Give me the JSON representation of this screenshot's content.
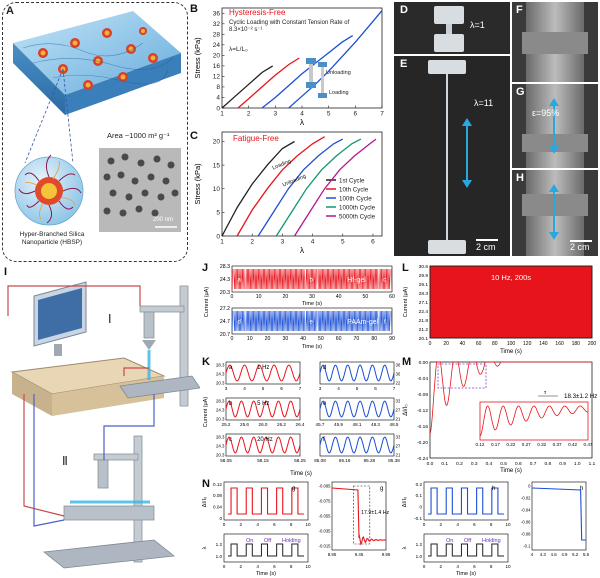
{
  "panels": {
    "A": {
      "letter": "A",
      "area_label": "Area ~1000 m² g⁻¹",
      "scale_bar": "200 nm",
      "particle_caption": "Hyper-Branched Silica Nanoparticle (HBSP)"
    },
    "B": {
      "letter": "B",
      "title": "Hysteresis-Free",
      "subtitle": "Cyclic Loading with Constant Tension Rate of 8.3×10⁻² s⁻¹",
      "lambda_def": "λ=L/L₀",
      "unloading": "Unloading",
      "loading": "Loading",
      "xlabel": "λ",
      "ylabel": "Stress (kPa)"
    },
    "C": {
      "letter": "C",
      "title": "Fatigue-Free",
      "loading": "Loading",
      "unloading": "Unloading",
      "xlabel": "λ",
      "ylabel": "Stress (kPa)"
    },
    "D": {
      "letter": "D",
      "label": "λ=1"
    },
    "E": {
      "letter": "E",
      "label": "λ=11",
      "scale": "2 cm"
    },
    "F": {
      "letter": "F"
    },
    "G": {
      "letter": "G",
      "label": "ε=95%"
    },
    "H": {
      "letter": "H",
      "scale": "2 cm"
    },
    "I": {
      "letter": "I",
      "roman1": "Ⅰ",
      "roman2": "Ⅱ"
    },
    "J": {
      "letter": "J",
      "ylabel": "Current (μA)",
      "xlabel": "Time (s)",
      "top_label": "Hf-gel",
      "bottom_label": "PAAm-gel",
      "boxes_top": [
        "a",
        "b",
        "c"
      ],
      "boxes_bottom": [
        "d",
        "e",
        "f"
      ]
    },
    "K": {
      "letter": "K",
      "xlabel": "Time (s)",
      "ylabel": "Current (μA)",
      "sub": [
        {
          "id": "a",
          "freq": "1 Hz"
        },
        {
          "id": "b",
          "freq": "5 Hz"
        },
        {
          "id": "c",
          "freq": "20 Hz"
        },
        {
          "id": "d",
          "freq": ""
        },
        {
          "id": "e",
          "freq": ""
        },
        {
          "id": "f",
          "freq": ""
        }
      ]
    },
    "L": {
      "letter": "L",
      "label": "10 Hz, 200s",
      "xlabel": "Time (s)",
      "ylabel": "Current (μA)"
    },
    "M": {
      "letter": "M",
      "label": "18.3±1.2 Hz",
      "tau": "τ",
      "xlabel": "Time (s)",
      "ylabel": "ΔI/I₀"
    },
    "N": {
      "letter": "N",
      "g_label": "g",
      "h_label": "h",
      "freq_label": "17.9±1.4 Hz",
      "on": "On",
      "off": "Off",
      "holding": "Holding",
      "xlabel": "Time (s)",
      "ylabel_top": "ΔI/I₀",
      "ylabel_bottom": "λ"
    }
  },
  "chart_data": [
    {
      "id": "B",
      "type": "line",
      "title": "Hysteresis-Free",
      "xlabel": "λ",
      "ylabel": "Stress (kPa)",
      "xlim": [
        1,
        7
      ],
      "ylim": [
        0,
        38
      ],
      "xticks": [
        1,
        2,
        3,
        4,
        5,
        6,
        7
      ],
      "yticks": [
        0,
        4,
        8,
        12,
        16,
        20,
        24,
        28,
        32,
        36
      ],
      "series": [
        {
          "name": "cycle1",
          "color": "#222222",
          "x": [
            1,
            1.5,
            2,
            2.5,
            2.9
          ],
          "y": [
            0,
            4.5,
            9,
            13.5,
            16
          ]
        },
        {
          "name": "cycle2",
          "color": "#e8141c",
          "x": [
            1.6,
            2,
            2.5,
            3,
            3.5,
            3.9
          ],
          "y": [
            0,
            3.5,
            8,
            12.5,
            16.5,
            19
          ]
        },
        {
          "name": "cycle3",
          "color": "#1b4fd6",
          "x": [
            2.5,
            3,
            3.5,
            4,
            4.5,
            5,
            5.5,
            5.9
          ],
          "y": [
            0,
            4,
            8.5,
            13,
            17,
            21,
            25,
            27.5
          ]
        },
        {
          "name": "cycle4",
          "color": "#1b4fd6",
          "x": [
            3.5,
            4,
            4.5,
            5,
            5.5,
            6,
            6.5,
            7
          ],
          "y": [
            0,
            4.5,
            9,
            14,
            19.5,
            25,
            31,
            37
          ]
        }
      ]
    },
    {
      "id": "C",
      "type": "line",
      "title": "Fatigue-Free",
      "xlabel": "λ",
      "ylabel": "Stress (kPa)",
      "xlim": [
        1,
        6.3
      ],
      "ylim": [
        0,
        22
      ],
      "xticks": [
        1,
        2,
        3,
        4,
        5,
        6
      ],
      "yticks": [
        0,
        5,
        10,
        15,
        20
      ],
      "legend": [
        "1st Cycle",
        "10th Cycle",
        "100th Cycle",
        "1000th Cycle",
        "5000th Cycle"
      ],
      "series": [
        {
          "name": "1st Cycle",
          "color": "#222222",
          "x": [
            1,
            1.5,
            2,
            2.5,
            3,
            3.4
          ],
          "y": [
            0,
            6,
            11,
            15,
            18.5,
            20
          ]
        },
        {
          "name": "10th Cycle",
          "color": "#e8141c",
          "x": [
            1.5,
            2,
            2.5,
            3,
            3.5,
            4,
            4.4
          ],
          "y": [
            0,
            5.5,
            10,
            14,
            17,
            19.5,
            21
          ]
        },
        {
          "name": "100th Cycle",
          "color": "#1b4fd6",
          "x": [
            2.2,
            2.7,
            3.2,
            3.7,
            4.2,
            4.7,
            5
          ],
          "y": [
            0,
            5,
            10,
            14,
            17,
            19.5,
            20.5
          ]
        },
        {
          "name": "1000th Cycle",
          "color": "#0d9a6a",
          "x": [
            2.8,
            3.3,
            3.8,
            4.3,
            4.8,
            5.3,
            5.6
          ],
          "y": [
            0,
            5,
            10,
            14,
            17,
            19.5,
            20.5
          ]
        },
        {
          "name": "5000th Cycle",
          "color": "#b2188f",
          "x": [
            3.4,
            3.9,
            4.4,
            4.9,
            5.4,
            5.9,
            6.1
          ],
          "y": [
            0,
            5,
            10,
            14,
            17,
            19.5,
            20.5
          ]
        }
      ]
    },
    {
      "id": "J",
      "type": "line",
      "xlabel": "Time (s)",
      "ylabel": "Current (μA)",
      "top": {
        "name": "Hf-gel",
        "color": "#e8141c",
        "xlim": [
          0,
          60
        ],
        "xticks": [
          0,
          10,
          20,
          30,
          40,
          50,
          60
        ],
        "yticks": [
          20.3,
          24.3,
          28.3
        ]
      },
      "bottom": {
        "name": "PAAm-gel",
        "color": "#1b4fd6",
        "xlim": [
          0,
          90
        ],
        "xticks": [
          0,
          10,
          20,
          30,
          40,
          50,
          60,
          70,
          80,
          90
        ],
        "yticks": [
          20.7,
          24.7,
          27.2
        ]
      }
    },
    {
      "id": "K",
      "type": "line",
      "subplots": [
        {
          "id": "a",
          "freq": "1 Hz",
          "color": "#e8141c",
          "xticks": [
            "3",
            "4",
            "5",
            "6",
            "7"
          ],
          "yticks": [
            "28.3",
            "24.3",
            "20.3"
          ],
          "cycles": 5
        },
        {
          "id": "b",
          "freq": "5 Hz",
          "color": "#e8141c",
          "xticks": [
            "25.2",
            "25.6",
            "26.0",
            "26.2",
            "26.4"
          ],
          "yticks": [
            "28.3",
            "24.3",
            "20.3"
          ],
          "cycles": 6
        },
        {
          "id": "c",
          "freq": "20 Hz",
          "color": "#e8141c",
          "xticks": [
            "58.05",
            "58.15",
            "58.25"
          ],
          "yticks": [
            "28.3",
            "24.3",
            "20.3"
          ],
          "cycles": 6
        },
        {
          "id": "d",
          "freq": "",
          "color": "#1b4fd6",
          "xticks": [
            "3",
            "4",
            "5",
            "6",
            "7"
          ],
          "yticks": [
            "38.3",
            "36.3",
            "22.3"
          ],
          "cycles": 6
        },
        {
          "id": "e",
          "freq": "",
          "color": "#1b4fd6",
          "xticks": [
            "45.7",
            "45.9",
            "48.1",
            "48.3",
            "48.5"
          ],
          "yticks": [
            "33.8",
            "27.8",
            "21.8"
          ],
          "cycles": 6
        },
        {
          "id": "f",
          "freq": "",
          "color": "#1b4fd6",
          "xticks": [
            "85.08",
            "85.18",
            "85.28",
            "85.38"
          ],
          "yticks": [
            "33.2",
            "27.2",
            "21.2"
          ],
          "cycles": 6
        }
      ],
      "xlabel": "Time (s)"
    },
    {
      "id": "L",
      "type": "line",
      "label": "10 Hz, 200s",
      "xlabel": "Time (s)",
      "ylabel": "Current (μA)",
      "xticks": [
        0,
        20,
        40,
        60,
        80,
        100,
        120,
        140,
        160,
        180,
        200
      ],
      "yticks": [
        20.1,
        21.2,
        21.8,
        22.4,
        27.1,
        28.3,
        29.1,
        29.9,
        30.6
      ],
      "color": "#e8141c"
    },
    {
      "id": "M",
      "type": "line",
      "xlabel": "Time (s)",
      "ylabel": "ΔI/I₀",
      "xticks": [
        0.0,
        0.1,
        0.2,
        0.3,
        0.4,
        0.5,
        0.6,
        0.7,
        0.8,
        0.9,
        1.0,
        1.1
      ],
      "yticks": [
        0.0,
        -0.04,
        -0.08,
        -0.12,
        -0.16,
        -0.2,
        -0.24
      ],
      "inset_xticks": [
        0.12,
        0.17,
        0.22,
        0.27,
        0.32,
        0.37,
        0.42,
        0.47
      ],
      "color": "#e8141c",
      "annotation": "18.3±1.2 Hz"
    },
    {
      "id": "N",
      "type": "line",
      "left": {
        "color": "#e8141c",
        "yticks": [
          0.12,
          0.08,
          0.04,
          0
        ],
        "xticks": [
          0,
          2,
          4,
          6,
          8,
          10
        ],
        "inset_xticks": [
          8.95,
          9.45,
          9.95
        ],
        "inset_yticks": [
          -0.095,
          -0.075,
          -0.055,
          -0.035,
          -0.015
        ],
        "annotation": "17.9±1.4 Hz"
      },
      "right": {
        "color": "#1b4fd6",
        "yticks": [
          0.2,
          0.1,
          0.0,
          -0.1
        ],
        "xticks": [
          0,
          2,
          4,
          6,
          8,
          10
        ],
        "inset_xticks": [
          4.0,
          4.3,
          4.6,
          4.9,
          5.2,
          5.5
        ],
        "inset_yticks": [
          0.0,
          -0.02,
          -0.04,
          -0.06,
          -0.08,
          -0.1
        ]
      },
      "lambda_yticks": [
        1.2,
        1.0
      ]
    }
  ]
}
